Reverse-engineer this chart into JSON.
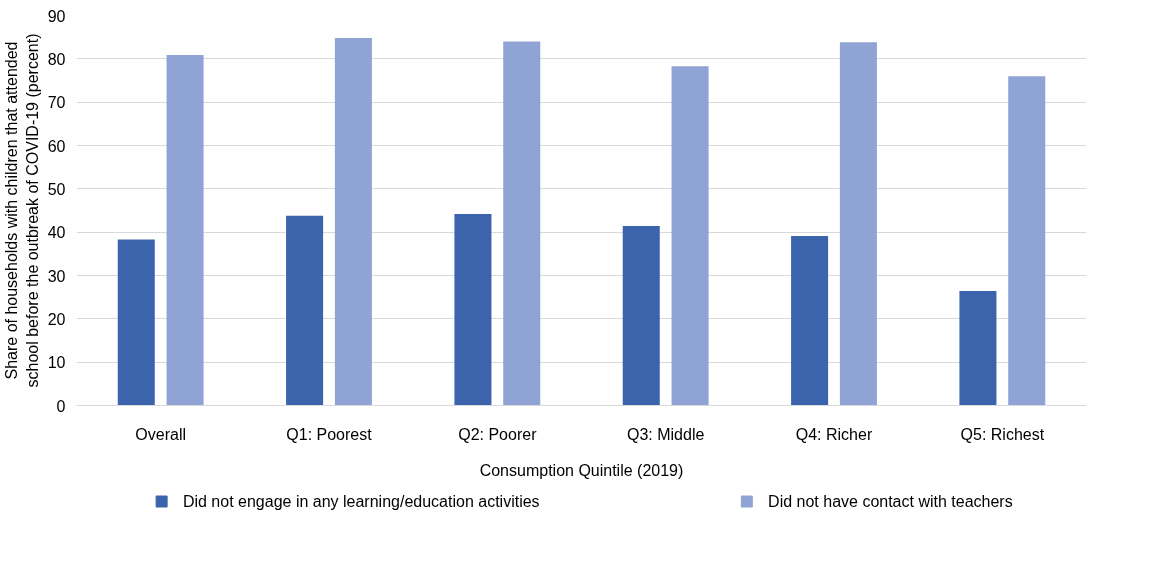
{
  "chart_data": {
    "type": "bar",
    "ylabel": "Share of households with children that attended school before the outbreak of COVID-19 (percent)",
    "categories": [
      "Overall",
      "Q1: Poorest",
      "Q2: Poorer",
      "Q3: Middle",
      "Q4: Richer",
      "Q5: Richest"
    ],
    "annotations": [
      "Consumption Quintile (2019)"
    ],
    "series": [
      {
        "name": "Did not engage in any learning/education activities",
        "color": "#3c64ac",
        "values": [
          38.3,
          43.8,
          44.2,
          41.4,
          39.1,
          26.4
        ]
      },
      {
        "name": "Did not have contact with teachers",
        "color": "#8fa3d4",
        "values": [
          80.9,
          84.8,
          84.0,
          78.3,
          83.8,
          76.0
        ]
      }
    ],
    "ylim": [
      0,
      90
    ],
    "yticks": [
      0,
      10,
      20,
      30,
      40,
      50,
      60,
      70,
      80,
      90
    ],
    "grid": "y",
    "legend": "bottom"
  }
}
